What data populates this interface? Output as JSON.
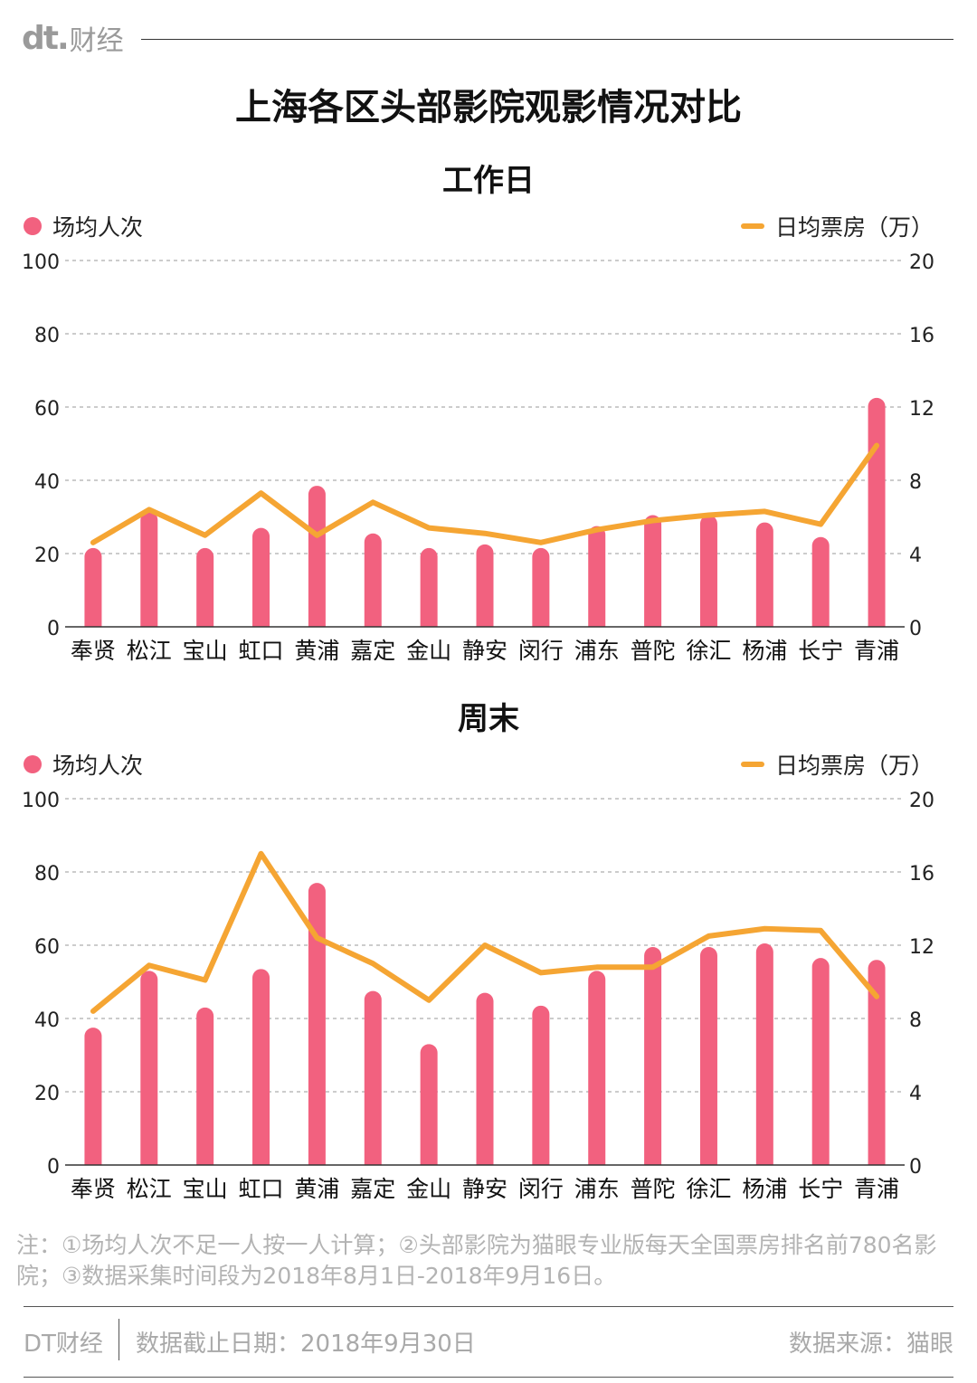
{
  "brand": {
    "logo": "dt.",
    "name": "财经"
  },
  "main_title": "上海各区头部影院观影情况对比",
  "legend": {
    "left_label": "场均人次",
    "right_label": "日均票房（万）"
  },
  "colors": {
    "bar": "#f2617f",
    "line": "#f5a533",
    "grid": "#9a9a9a",
    "axis": "#333333"
  },
  "chart_data": [
    {
      "type": "bar",
      "title": "工作日",
      "categories": [
        "奉贤",
        "松江",
        "宝山",
        "虹口",
        "黄浦",
        "嘉定",
        "金山",
        "静安",
        "闵行",
        "浦东",
        "普陀",
        "徐汇",
        "杨浦",
        "长宁",
        "青浦"
      ],
      "series": [
        {
          "name": "场均人次",
          "type": "bar",
          "axis": "left",
          "values": [
            21.5,
            31.5,
            21.5,
            27,
            38.5,
            25.5,
            21.5,
            22.5,
            21.5,
            27.5,
            30.5,
            30.5,
            28.5,
            24.5,
            62.5
          ]
        },
        {
          "name": "日均票房（万）",
          "type": "line",
          "axis": "right",
          "values": [
            4.6,
            6.4,
            5.0,
            7.3,
            5.0,
            6.8,
            5.4,
            5.1,
            4.6,
            5.3,
            5.8,
            6.1,
            6.3,
            5.6,
            9.9
          ]
        }
      ],
      "y_left": {
        "min": 0,
        "max": 100,
        "ticks": [
          0,
          20,
          40,
          60,
          80,
          100
        ]
      },
      "y_right": {
        "min": 0,
        "max": 20,
        "ticks": [
          0,
          4,
          8,
          12,
          16,
          20
        ]
      },
      "grid": true
    },
    {
      "type": "bar",
      "title": "周末",
      "categories": [
        "奉贤",
        "松江",
        "宝山",
        "虹口",
        "黄浦",
        "嘉定",
        "金山",
        "静安",
        "闵行",
        "浦东",
        "普陀",
        "徐汇",
        "杨浦",
        "长宁",
        "青浦"
      ],
      "series": [
        {
          "name": "场均人次",
          "type": "bar",
          "axis": "left",
          "values": [
            37.5,
            53,
            43,
            53.5,
            77,
            47.5,
            33,
            47,
            43.5,
            53,
            59.5,
            59.5,
            60.5,
            56.5,
            56
          ]
        },
        {
          "name": "日均票房（万）",
          "type": "line",
          "axis": "right",
          "values": [
            8.4,
            10.9,
            10.1,
            17.0,
            12.4,
            11.0,
            9.0,
            12.0,
            10.5,
            10.8,
            10.8,
            12.5,
            12.9,
            12.8,
            9.2
          ]
        }
      ],
      "y_left": {
        "min": 0,
        "max": 100,
        "ticks": [
          0,
          20,
          40,
          60,
          80,
          100
        ]
      },
      "y_right": {
        "min": 0,
        "max": 20,
        "ticks": [
          0,
          4,
          8,
          12,
          16,
          20
        ]
      },
      "grid": true
    }
  ],
  "note": "注：①场均人次不足一人按一人计算；②头部影院为猫眼专业版每天全国票房排名前780名影院；③数据采集时间段为2018年8月1日-2018年9月16日。",
  "footer": {
    "brand": "DT财经",
    "date": "数据截止日期：2018年9月30日",
    "source": "数据来源：猫眼"
  }
}
